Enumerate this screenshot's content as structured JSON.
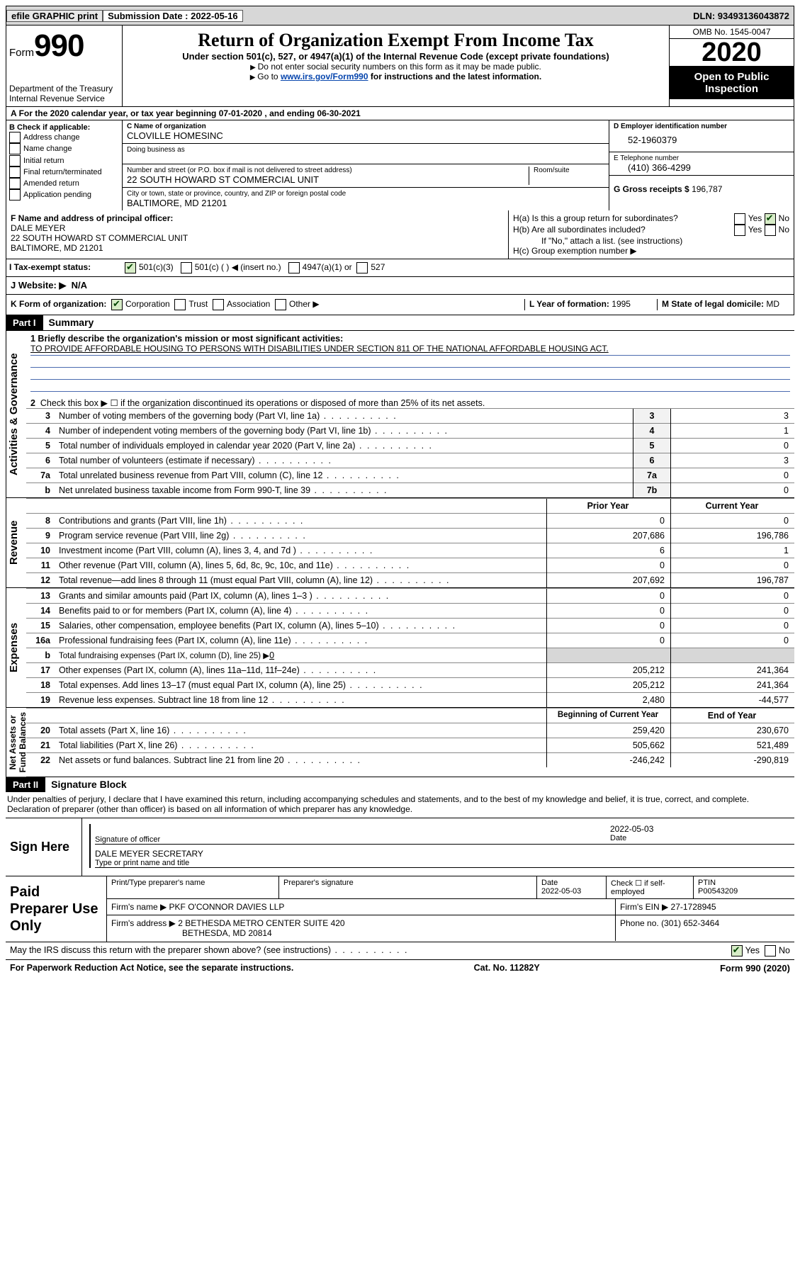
{
  "topbar": {
    "efile": "efile GRAPHIC print",
    "submission_label": "Submission Date : 2022-05-16",
    "dln": "DLN: 93493136043872"
  },
  "header": {
    "form_word": "Form",
    "form_number": "990",
    "dept": "Department of the Treasury\nInternal Revenue Service",
    "title": "Return of Organization Exempt From Income Tax",
    "subtitle": "Under section 501(c), 527, or 4947(a)(1) of the Internal Revenue Code (except private foundations)",
    "line1": "Do not enter social security numbers on this form as it may be made public.",
    "line2_pre": "Go to ",
    "line2_link": "www.irs.gov/Form990",
    "line2_post": " for instructions and the latest information.",
    "omb": "OMB No. 1545-0047",
    "year": "2020",
    "public1": "Open to Public",
    "public2": "Inspection"
  },
  "period": "For the 2020 calendar year, or tax year beginning 07-01-2020    , and ending 06-30-2021",
  "section_b": {
    "label": "B Check if applicable:",
    "items": [
      "Address change",
      "Name change",
      "Initial return",
      "Final return/terminated",
      "Amended return",
      "Application pending"
    ]
  },
  "section_c": {
    "name_label": "C Name of organization",
    "name": "CLOVILLE HOMESINC",
    "dba_label": "Doing business as",
    "street_label": "Number and street (or P.O. box if mail is not delivered to street address)",
    "room_label": "Room/suite",
    "street": "22 SOUTH HOWARD ST COMMERCIAL UNIT",
    "city_label": "City or town, state or province, country, and ZIP or foreign postal code",
    "city": "BALTIMORE, MD  21201"
  },
  "section_d": {
    "ein_label": "D Employer identification number",
    "ein": "52-1960379",
    "phone_label": "E Telephone number",
    "phone": "(410) 366-4299",
    "gross_label": "G Gross receipts $ ",
    "gross": "196,787"
  },
  "section_f": {
    "label": "F  Name and address of principal officer:",
    "name": "DALE MEYER",
    "street": "22 SOUTH HOWARD ST COMMERCIAL UNIT",
    "city": "BALTIMORE, MD  21201"
  },
  "section_h": {
    "ha": "H(a)  Is this a group return for subordinates?",
    "hb": "H(b)  Are all subordinates included?",
    "hb_note": "If \"No,\" attach a list. (see instructions)",
    "hc": "H(c)  Group exemption number ▶"
  },
  "tax_exempt": {
    "label": "Tax-exempt status:",
    "a": "501(c)(3)",
    "b": "501(c) (  ) ◀ (insert no.)",
    "c": "4947(a)(1) or",
    "d": "527"
  },
  "website": {
    "label": "J   Website: ▶",
    "value": "N/A"
  },
  "section_k": {
    "label": "K Form of organization:",
    "a": "Corporation",
    "b": "Trust",
    "c": "Association",
    "d": "Other ▶"
  },
  "section_l": {
    "label": "L Year of formation:",
    "value": "1995"
  },
  "section_m": {
    "label": "M State of legal domicile:",
    "value": "MD"
  },
  "part1": {
    "hdr": "Part I",
    "title": "Summary",
    "q1_label": "1   Briefly describe the organization's mission or most significant activities:",
    "q1_value": "TO PROVIDE AFFORDABLE HOUSING TO PERSONS WITH DISABILITIES UNDER SECTION 811 OF THE NATIONAL AFFORDABLE HOUSING ACT.",
    "q2": "Check this box ▶ ☐  if the organization discontinued its operations or disposed of more than 25% of its net assets.",
    "rows_governance": [
      {
        "n": "3",
        "text": "Number of voting members of the governing body (Part VI, line 1a)",
        "box": "3",
        "val": "3"
      },
      {
        "n": "4",
        "text": "Number of independent voting members of the governing body (Part VI, line 1b)",
        "box": "4",
        "val": "1"
      },
      {
        "n": "5",
        "text": "Total number of individuals employed in calendar year 2020 (Part V, line 2a)",
        "box": "5",
        "val": "0"
      },
      {
        "n": "6",
        "text": "Total number of volunteers (estimate if necessary)",
        "box": "6",
        "val": "3"
      },
      {
        "n": "7a",
        "text": "Total unrelated business revenue from Part VIII, column (C), line 12",
        "box": "7a",
        "val": "0"
      },
      {
        "n": "b",
        "text": "Net unrelated business taxable income from Form 990-T, line 39",
        "box": "7b",
        "val": "0"
      }
    ],
    "col_prior": "Prior Year",
    "col_current": "Current Year",
    "rows_revenue": [
      {
        "n": "8",
        "text": "Contributions and grants (Part VIII, line 1h)",
        "prior": "0",
        "current": "0"
      },
      {
        "n": "9",
        "text": "Program service revenue (Part VIII, line 2g)",
        "prior": "207,686",
        "current": "196,786"
      },
      {
        "n": "10",
        "text": "Investment income (Part VIII, column (A), lines 3, 4, and 7d )",
        "prior": "6",
        "current": "1"
      },
      {
        "n": "11",
        "text": "Other revenue (Part VIII, column (A), lines 5, 6d, 8c, 9c, 10c, and 11e)",
        "prior": "0",
        "current": "0"
      },
      {
        "n": "12",
        "text": "Total revenue—add lines 8 through 11 (must equal Part VIII, column (A), line 12)",
        "prior": "207,692",
        "current": "196,787"
      }
    ],
    "rows_expenses": [
      {
        "n": "13",
        "text": "Grants and similar amounts paid (Part IX, column (A), lines 1–3 )",
        "prior": "0",
        "current": "0"
      },
      {
        "n": "14",
        "text": "Benefits paid to or for members (Part IX, column (A), line 4)",
        "prior": "0",
        "current": "0"
      },
      {
        "n": "15",
        "text": "Salaries, other compensation, employee benefits (Part IX, column (A), lines 5–10)",
        "prior": "0",
        "current": "0"
      },
      {
        "n": "16a",
        "text": "Professional fundraising fees (Part IX, column (A), line 11e)",
        "prior": "0",
        "current": "0"
      }
    ],
    "row_16b": {
      "n": "b",
      "text": "Total fundraising expenses (Part IX, column (D), line 25) ▶",
      "val": "0"
    },
    "rows_expenses2": [
      {
        "n": "17",
        "text": "Other expenses (Part IX, column (A), lines 11a–11d, 11f–24e)",
        "prior": "205,212",
        "current": "241,364"
      },
      {
        "n": "18",
        "text": "Total expenses. Add lines 13–17 (must equal Part IX, column (A), line 25)",
        "prior": "205,212",
        "current": "241,364"
      },
      {
        "n": "19",
        "text": "Revenue less expenses. Subtract line 18 from line 12",
        "prior": "2,480",
        "current": "-44,577"
      }
    ],
    "col_begin": "Beginning of Current Year",
    "col_end": "End of Year",
    "rows_net": [
      {
        "n": "20",
        "text": "Total assets (Part X, line 16)",
        "prior": "259,420",
        "current": "230,670"
      },
      {
        "n": "21",
        "text": "Total liabilities (Part X, line 26)",
        "prior": "505,662",
        "current": "521,489"
      },
      {
        "n": "22",
        "text": "Net assets or fund balances. Subtract line 21 from line 20",
        "prior": "-246,242",
        "current": "-290,819"
      }
    ]
  },
  "part2": {
    "hdr": "Part II",
    "title": "Signature Block",
    "perjury": "Under penalties of perjury, I declare that I have examined this return, including accompanying schedules and statements, and to the best of my knowledge and belief, it is true, correct, and complete. Declaration of preparer (other than officer) is based on all information of which preparer has any knowledge."
  },
  "sign": {
    "label": "Sign Here",
    "sig_label": "Signature of officer",
    "date_label": "Date",
    "date": "2022-05-03",
    "name": "DALE MEYER SECRETARY",
    "name_label": "Type or print name and title"
  },
  "paid": {
    "label": "Paid Preparer Use Only",
    "col1": "Print/Type preparer's name",
    "col2": "Preparer's signature",
    "col3_label": "Date",
    "col3": "2022-05-03",
    "col4": "Check ☐ if self-employed",
    "col5_label": "PTIN",
    "col5": "P00543209",
    "firm_name_label": "Firm's name    ▶",
    "firm_name": "PKF O'CONNOR DAVIES LLP",
    "firm_ein_label": "Firm's EIN ▶",
    "firm_ein": "27-1728945",
    "firm_addr_label": "Firm's address ▶",
    "firm_addr1": "2 BETHESDA METRO CENTER SUITE 420",
    "firm_addr2": "BETHESDA, MD  20814",
    "phone_label": "Phone no.",
    "phone": "(301) 652-3464"
  },
  "discuss": {
    "text": "May the IRS discuss this return with the preparer shown above? (see instructions)",
    "yes": "Yes",
    "no": "No"
  },
  "footer": {
    "left": "For Paperwork Reduction Act Notice, see the separate instructions.",
    "center": "Cat. No. 11282Y",
    "right": "Form 990 (2020)"
  },
  "labels": {
    "side_gov": "Activities & Governance",
    "side_rev": "Revenue",
    "side_exp": "Expenses",
    "side_net": "Net Assets or\nFund Balances"
  },
  "yn": {
    "yes": "Yes",
    "no": "No"
  }
}
